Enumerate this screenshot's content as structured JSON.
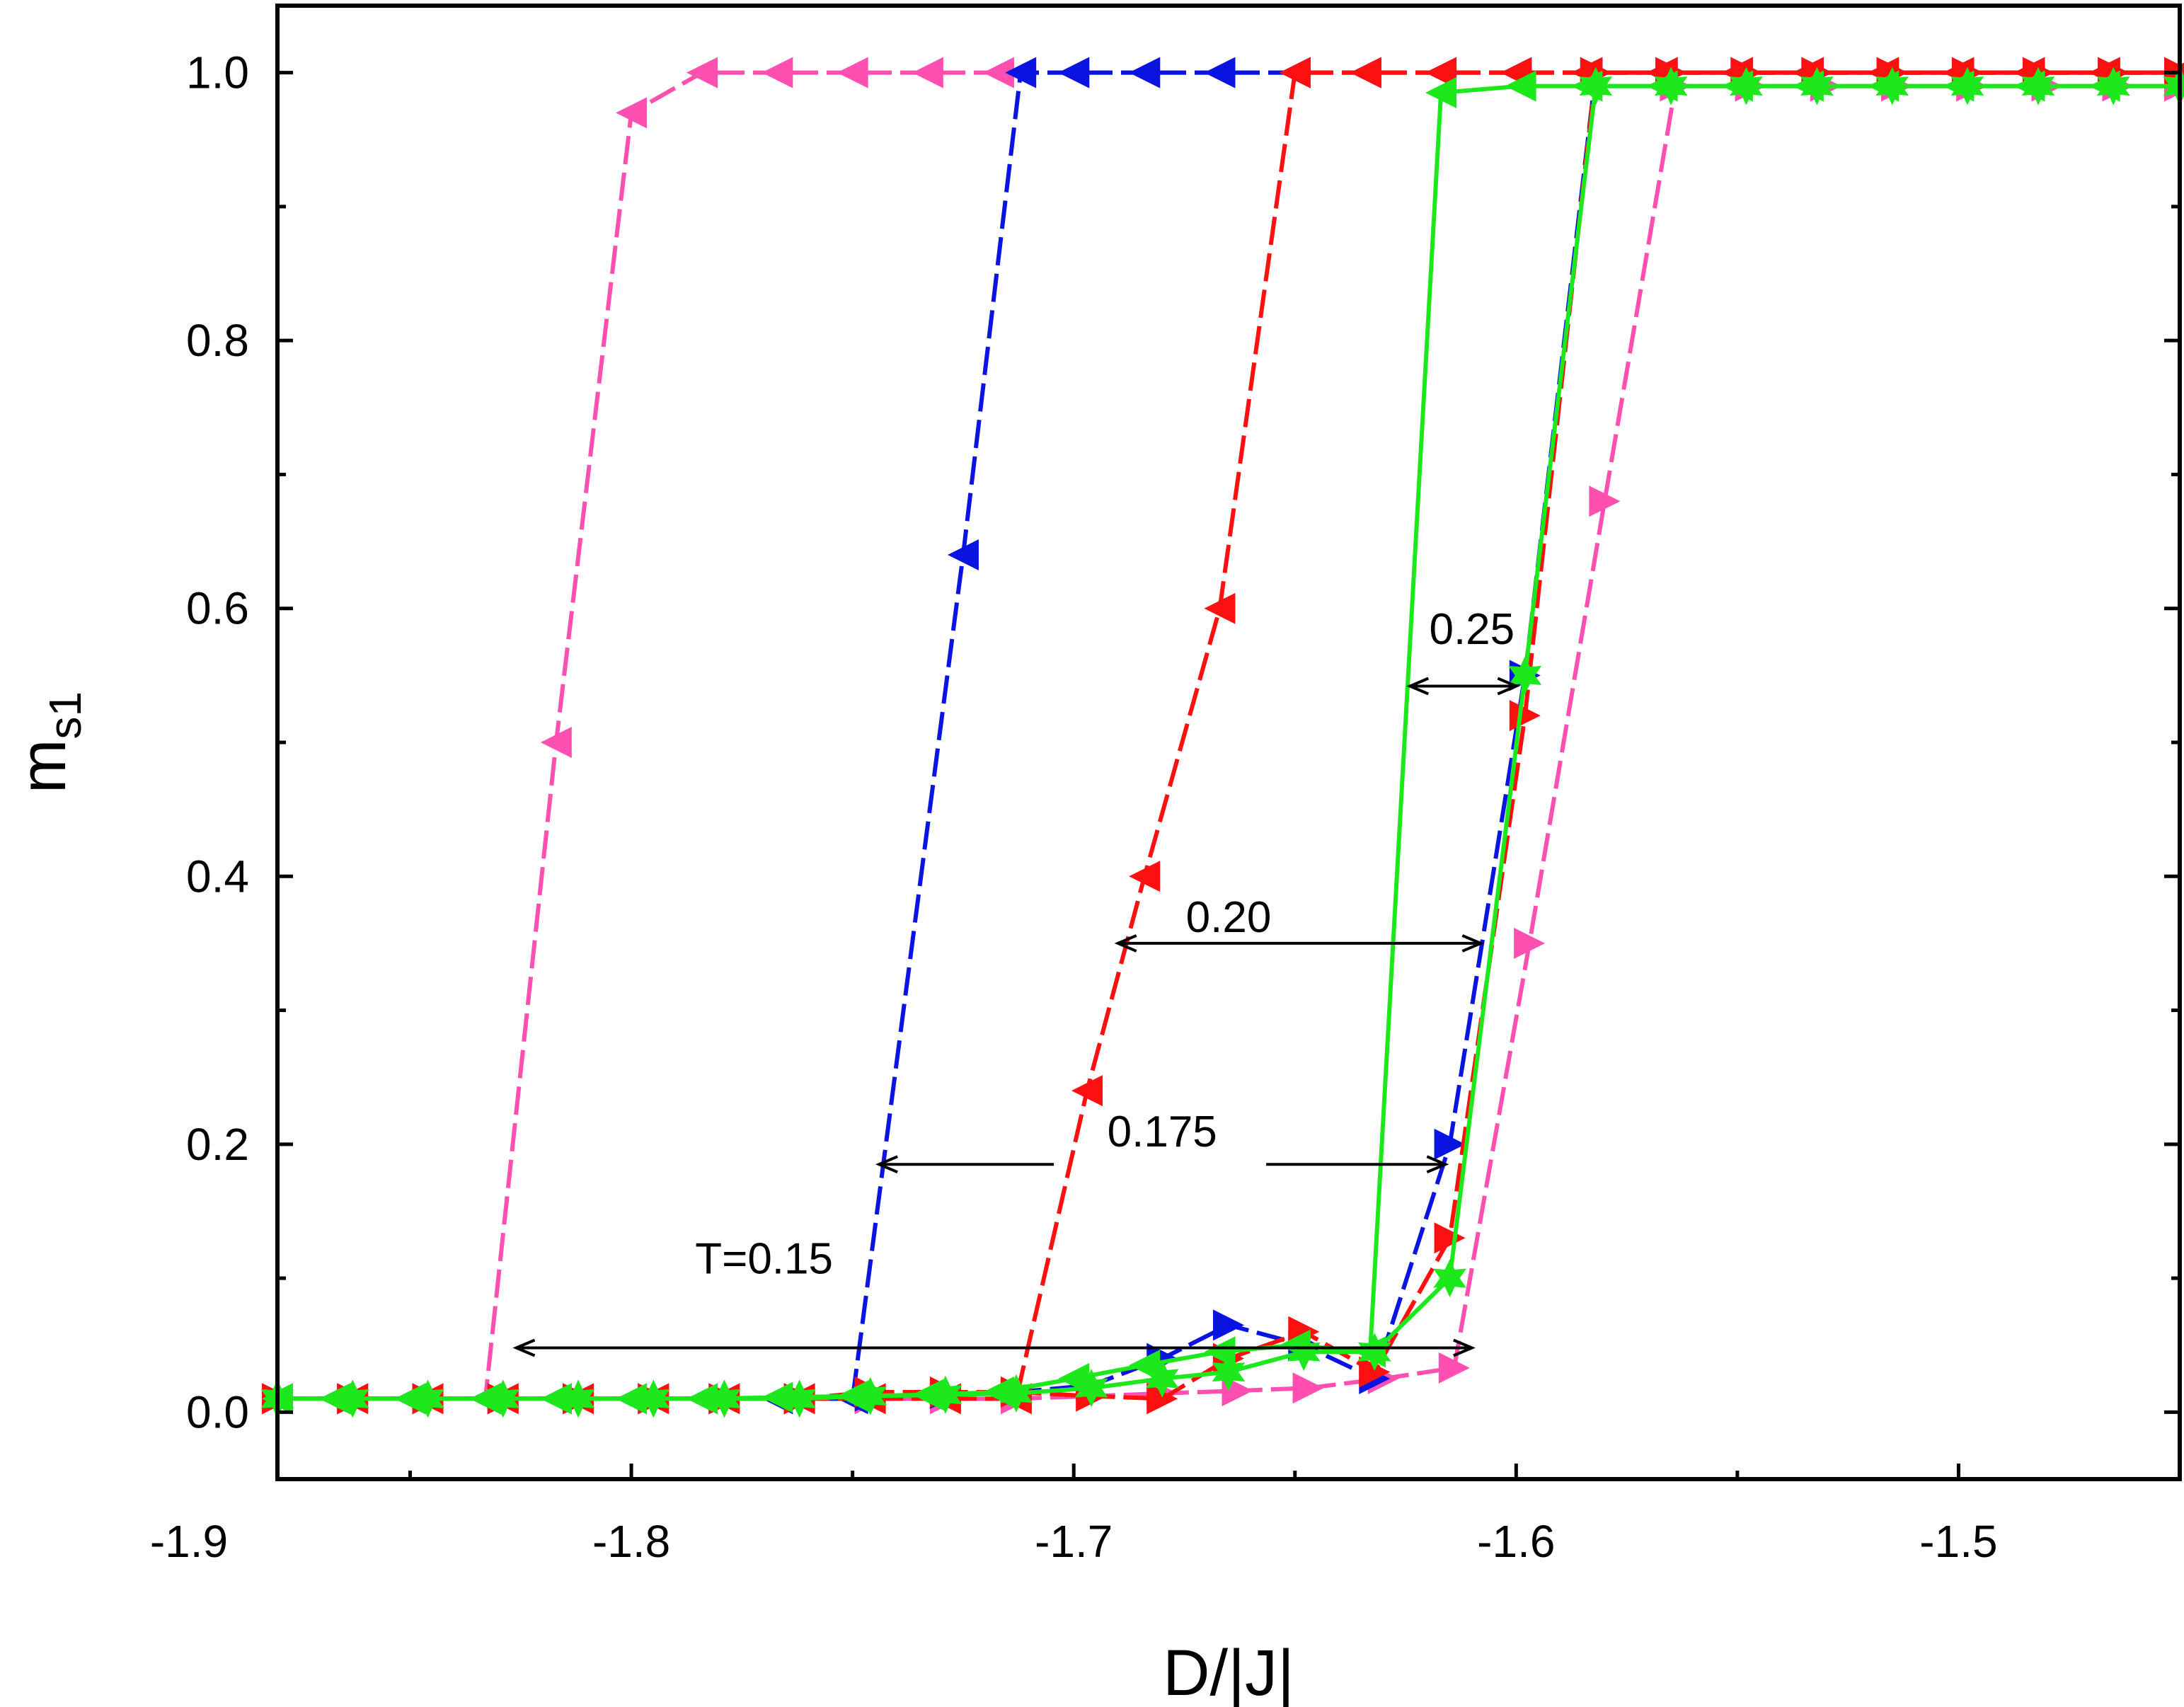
{
  "chart_data": {
    "type": "line",
    "title": "",
    "xlabel": "D/|J|",
    "ylabel_main": "m",
    "ylabel_sub": "s1",
    "xlim": [
      -1.88,
      -1.45
    ],
    "ylim": [
      -0.05,
      1.05
    ],
    "xticks": [
      -1.9,
      -1.8,
      -1.7,
      -1.6,
      -1.5
    ],
    "xtick_labels": [
      "-1.9",
      "-1.8",
      "-1.7",
      "-1.6",
      "-1.5"
    ],
    "yticks": [
      0.0,
      0.2,
      0.4,
      0.6,
      0.8,
      1.0
    ],
    "ytick_labels": [
      "0.0",
      "0.2",
      "0.4",
      "0.6",
      "0.8",
      "1.0"
    ],
    "grid": false,
    "series": [
      {
        "temperature": "0.15",
        "branch": "forward",
        "color": "#ff4fb0",
        "marker": "triangle-right",
        "dash": "dashed",
        "line_color": "#ff4fb0",
        "x": [
          -1.88,
          -1.863,
          -1.846,
          -1.829,
          -1.812,
          -1.795,
          -1.779,
          -1.762,
          -1.746,
          -1.729,
          -1.713,
          -1.696,
          -1.68,
          -1.663,
          -1.647,
          -1.63,
          -1.614,
          -1.597,
          -1.58,
          -1.564,
          -1.547,
          -1.53,
          -1.514,
          -1.497,
          -1.48,
          -1.464,
          -1.45
        ],
        "y": [
          0.01,
          0.01,
          0.01,
          0.01,
          0.01,
          0.01,
          0.01,
          0.01,
          0.01,
          0.01,
          0.01,
          0.012,
          0.014,
          0.016,
          0.018,
          0.025,
          0.033,
          0.35,
          0.68,
          0.99,
          0.99,
          0.99,
          0.99,
          0.99,
          0.99,
          0.99,
          0.99
        ]
      },
      {
        "temperature": "0.15",
        "branch": "backward",
        "color": "#ff4fb0",
        "marker": "triangle-left",
        "dash": "dashed",
        "line_color": "#ff4fb0",
        "x": [
          -1.45,
          -1.467,
          -1.484,
          -1.5,
          -1.517,
          -1.534,
          -1.55,
          -1.567,
          -1.584,
          -1.6,
          -1.617,
          -1.634,
          -1.65,
          -1.667,
          -1.684,
          -1.7,
          -1.717,
          -1.733,
          -1.75,
          -1.767,
          -1.784,
          -1.8,
          -1.817,
          -1.833,
          -1.85,
          -1.867,
          -1.88
        ],
        "y": [
          1.0,
          1.0,
          1.0,
          1.0,
          1.0,
          1.0,
          1.0,
          1.0,
          1.0,
          1.0,
          1.0,
          1.0,
          1.0,
          1.0,
          1.0,
          1.0,
          1.0,
          1.0,
          1.0,
          1.0,
          1.0,
          0.97,
          0.5,
          0.01,
          0.01,
          0.01,
          0.01
        ]
      },
      {
        "temperature": "0.175",
        "branch": "forward",
        "color": "#0a14e0",
        "marker": "triangle-right",
        "dash": "dashed",
        "line_color": "#0a14e0",
        "x": [
          -1.88,
          -1.863,
          -1.846,
          -1.829,
          -1.812,
          -1.795,
          -1.779,
          -1.762,
          -1.746,
          -1.729,
          -1.713,
          -1.696,
          -1.68,
          -1.665,
          -1.648,
          -1.632,
          -1.615,
          -1.598,
          -1.582,
          -1.565,
          -1.548,
          -1.532,
          -1.515,
          -1.498,
          -1.482,
          -1.465,
          -1.45
        ],
        "y": [
          0.01,
          0.01,
          0.01,
          0.01,
          0.01,
          0.01,
          0.01,
          0.01,
          0.012,
          0.014,
          0.015,
          0.02,
          0.04,
          0.065,
          0.05,
          0.025,
          0.2,
          0.55,
          1.0,
          1.0,
          1.0,
          1.0,
          1.0,
          1.0,
          1.0,
          1.0,
          1.0
        ]
      },
      {
        "temperature": "0.175",
        "branch": "backward",
        "color": "#0a14e0",
        "marker": "triangle-left",
        "dash": "dashed",
        "line_color": "#0a14e0",
        "x": [
          -1.45,
          -1.467,
          -1.484,
          -1.5,
          -1.517,
          -1.534,
          -1.55,
          -1.567,
          -1.584,
          -1.6,
          -1.617,
          -1.634,
          -1.65,
          -1.667,
          -1.684,
          -1.7,
          -1.712,
          -1.725,
          -1.75,
          -1.767,
          -1.784,
          -1.8,
          -1.817,
          -1.833,
          -1.85,
          -1.867,
          -1.88
        ],
        "y": [
          1.0,
          1.0,
          1.0,
          1.0,
          1.0,
          1.0,
          1.0,
          1.0,
          1.0,
          1.0,
          1.0,
          1.0,
          1.0,
          1.0,
          1.0,
          1.0,
          1.0,
          0.64,
          0.01,
          0.01,
          0.01,
          0.01,
          0.01,
          0.01,
          0.01,
          0.01,
          0.01
        ]
      },
      {
        "temperature": "0.20",
        "branch": "forward",
        "color": "#ff1010",
        "marker": "triangle-right",
        "dash": "dashed",
        "line_color": "#ff1010",
        "x": [
          -1.88,
          -1.863,
          -1.846,
          -1.829,
          -1.812,
          -1.795,
          -1.779,
          -1.762,
          -1.746,
          -1.729,
          -1.713,
          -1.696,
          -1.68,
          -1.665,
          -1.648,
          -1.632,
          -1.615,
          -1.598,
          -1.582,
          -1.565,
          -1.548,
          -1.532,
          -1.515,
          -1.498,
          -1.482,
          -1.465,
          -1.45
        ],
        "y": [
          0.01,
          0.01,
          0.01,
          0.01,
          0.01,
          0.01,
          0.01,
          0.01,
          0.015,
          0.015,
          0.015,
          0.012,
          0.01,
          0.04,
          0.06,
          0.03,
          0.13,
          0.52,
          1.0,
          1.0,
          1.0,
          1.0,
          1.0,
          1.0,
          1.0,
          1.0,
          1.0
        ]
      },
      {
        "temperature": "0.20",
        "branch": "backward",
        "color": "#ff1010",
        "marker": "triangle-left",
        "dash": "dashed",
        "line_color": "#ff1010",
        "x": [
          -1.45,
          -1.467,
          -1.484,
          -1.5,
          -1.517,
          -1.534,
          -1.55,
          -1.567,
          -1.584,
          -1.6,
          -1.617,
          -1.634,
          -1.65,
          -1.667,
          -1.684,
          -1.697,
          -1.713,
          -1.729,
          -1.746,
          -1.762,
          -1.779,
          -1.795,
          -1.812,
          -1.829,
          -1.846,
          -1.863,
          -1.88
        ],
        "y": [
          1.0,
          1.0,
          1.0,
          1.0,
          1.0,
          1.0,
          1.0,
          1.0,
          1.0,
          1.0,
          1.0,
          1.0,
          1.0,
          0.6,
          0.4,
          0.24,
          0.01,
          0.01,
          0.01,
          0.01,
          0.01,
          0.01,
          0.01,
          0.01,
          0.01,
          0.01,
          0.01
        ]
      },
      {
        "temperature": "0.25",
        "branch": "forward",
        "color": "#1ce81c",
        "marker": "star",
        "dash": "solid",
        "line_color": "#1ce81c",
        "x": [
          -1.88,
          -1.863,
          -1.846,
          -1.829,
          -1.812,
          -1.795,
          -1.779,
          -1.762,
          -1.746,
          -1.729,
          -1.713,
          -1.696,
          -1.68,
          -1.665,
          -1.648,
          -1.632,
          -1.615,
          -1.598,
          -1.582,
          -1.565,
          -1.548,
          -1.532,
          -1.515,
          -1.498,
          -1.482,
          -1.465,
          -1.45
        ],
        "y": [
          0.01,
          0.01,
          0.01,
          0.01,
          0.01,
          0.01,
          0.01,
          0.01,
          0.012,
          0.013,
          0.014,
          0.018,
          0.025,
          0.03,
          0.045,
          0.045,
          0.1,
          0.55,
          0.99,
          0.99,
          0.99,
          0.99,
          0.99,
          0.99,
          0.99,
          0.99,
          0.99
        ]
      },
      {
        "temperature": "0.25",
        "branch": "backward",
        "color": "#1ce81c",
        "marker": "triangle-left",
        "dash": "solid",
        "line_color": "#1ce81c",
        "x": [
          -1.45,
          -1.467,
          -1.484,
          -1.5,
          -1.517,
          -1.534,
          -1.55,
          -1.567,
          -1.584,
          -1.599,
          -1.617,
          -1.633,
          -1.65,
          -1.667,
          -1.684,
          -1.7,
          -1.717,
          -1.733,
          -1.75,
          -1.767,
          -1.784,
          -1.8,
          -1.817,
          -1.833,
          -1.85,
          -1.867,
          -1.88
        ],
        "y": [
          0.99,
          0.99,
          0.99,
          0.99,
          0.99,
          0.99,
          0.99,
          0.99,
          0.99,
          0.99,
          0.985,
          0.045,
          0.05,
          0.045,
          0.035,
          0.025,
          0.015,
          0.013,
          0.012,
          0.011,
          0.01,
          0.01,
          0.01,
          0.01,
          0.01,
          0.01,
          0.01
        ]
      }
    ],
    "annotations": [
      {
        "text": "T=0.15",
        "x": -1.77,
        "y": 0.115,
        "arrow_from": -1.826,
        "arrow_to": -1.61,
        "arrow_y": 0.048
      },
      {
        "text": "0.175",
        "x": -1.68,
        "y": 0.21,
        "arrow_from": -1.744,
        "arrow_to": -1.616,
        "arrow_y": 0.185,
        "gap": [
          -1.7045,
          -1.6565
        ]
      },
      {
        "text": "0.20",
        "x": -1.665,
        "y": 0.37,
        "arrow_from": -1.69,
        "arrow_to": -1.608,
        "arrow_y": 0.35
      },
      {
        "text": "0.25",
        "x": -1.61,
        "y": 0.585,
        "arrow_from": -1.624,
        "arrow_to": -1.6,
        "arrow_y": 0.542
      }
    ]
  }
}
